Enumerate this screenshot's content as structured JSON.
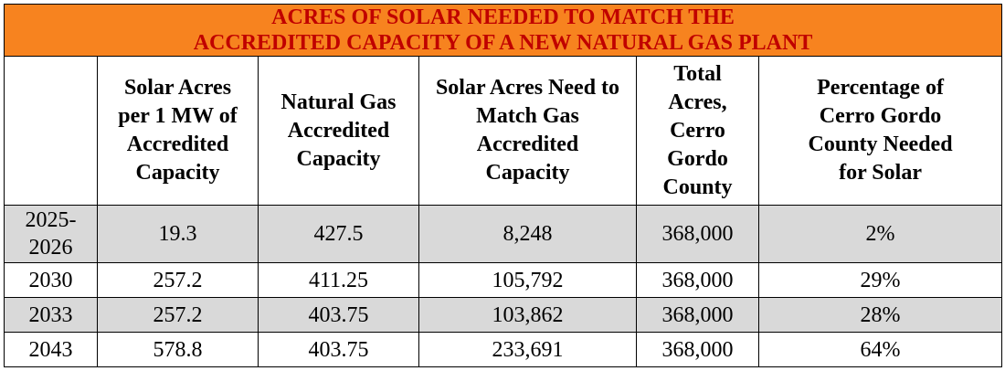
{
  "title": {
    "line1": "ACRES OF SOLAR NEEDED TO MATCH THE",
    "line2": "ACCREDITED CAPACITY OF A NEW NATURAL GAS PLANT"
  },
  "headers": [
    {
      "lines": [
        ""
      ]
    },
    {
      "lines": [
        "Solar Acres",
        "per 1 MW of",
        "Accredited",
        "Capacity"
      ]
    },
    {
      "lines": [
        "Natural Gas",
        "Accredited",
        "Capacity"
      ]
    },
    {
      "lines": [
        "Solar Acres Need to",
        "Match Gas",
        "Accredited",
        "Capacity"
      ]
    },
    {
      "lines": [
        "Total",
        "Acres,",
        "Cerro",
        "Gordo",
        "County"
      ]
    },
    {
      "lines": [
        "Percentage of",
        "Cerro Gordo",
        "County Needed",
        "for Solar"
      ]
    }
  ],
  "rows": [
    {
      "year_lines": [
        "2025-",
        "2026"
      ],
      "solar_per_mw": "19.3",
      "gas_capacity": "427.5",
      "solar_acres_needed": "8,248",
      "total_acres": "368,000",
      "percentage": "2%",
      "shaded": true
    },
    {
      "year_lines": [
        "2030"
      ],
      "solar_per_mw": "257.2",
      "gas_capacity": "411.25",
      "solar_acres_needed": "105,792",
      "total_acres": "368,000",
      "percentage": "29%",
      "shaded": false
    },
    {
      "year_lines": [
        "2033"
      ],
      "solar_per_mw": "257.2",
      "gas_capacity": "403.75",
      "solar_acres_needed": "103,862",
      "total_acres": "368,000",
      "percentage": "28%",
      "shaded": true
    },
    {
      "year_lines": [
        "2043"
      ],
      "solar_per_mw": "578.8",
      "gas_capacity": "403.75",
      "solar_acres_needed": "233,691",
      "total_acres": "368,000",
      "percentage": "64%",
      "shaded": false
    }
  ],
  "colors": {
    "title_background": "#f7831f",
    "title_text": "#c00000",
    "shaded_row": "#d9d9d9",
    "border": "#000000"
  }
}
